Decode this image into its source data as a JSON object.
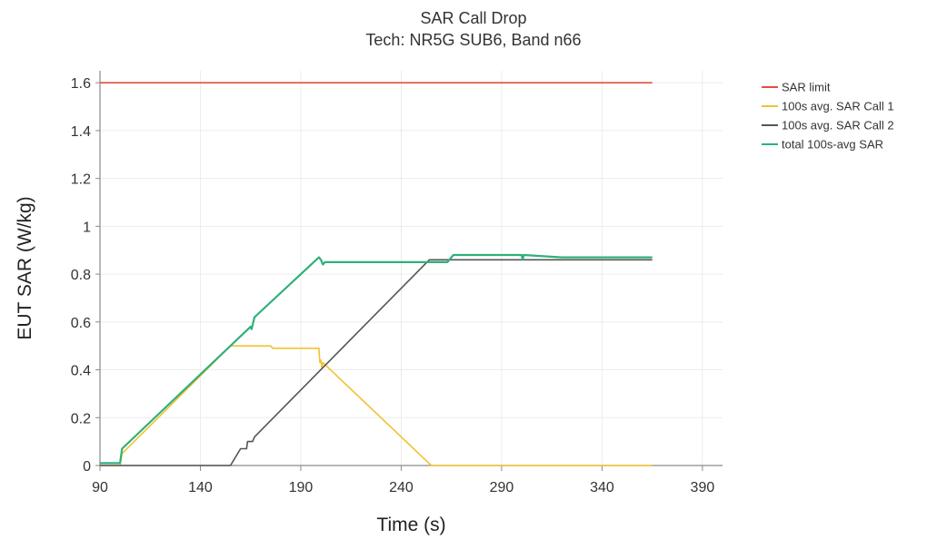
{
  "chart_data": {
    "type": "line",
    "title": "SAR Call Drop",
    "subtitle": "Tech: NR5G SUB6, Band n66",
    "xlabel": "Time (s)",
    "ylabel": "EUT SAR (W/kg)",
    "xlim": [
      90,
      400
    ],
    "ylim": [
      0,
      1.65
    ],
    "xticks": [
      "90",
      "140",
      "190",
      "240",
      "290",
      "340",
      "390"
    ],
    "yticks": [
      "0",
      "0.2",
      "0.4",
      "0.6",
      "0.8",
      "1",
      "1.2",
      "1.4",
      "1.6"
    ],
    "grid": true,
    "legend_position": "right",
    "series": [
      {
        "name": "SAR limit",
        "color": "#e0523b",
        "x": [
          90,
          365
        ],
        "y": [
          1.6,
          1.6
        ]
      },
      {
        "name": "100s avg. SAR Call 1",
        "color": "#f2c230",
        "x": [
          90,
          100,
          101,
          155,
          155.5,
          175,
          176,
          199,
          199.5,
          200,
          200.5,
          201,
          255,
          365
        ],
        "y": [
          0,
          0,
          0.05,
          0.5,
          0.5,
          0.5,
          0.49,
          0.49,
          0.43,
          0.44,
          0.41,
          0.43,
          0,
          0
        ]
      },
      {
        "name": "100s avg. SAR Call 2",
        "color": "#555555",
        "x": [
          90,
          155,
          160,
          163,
          163.5,
          166,
          167,
          254,
          365
        ],
        "y": [
          0,
          0,
          0.07,
          0.07,
          0.1,
          0.1,
          0.12,
          0.86,
          0.86
        ]
      },
      {
        "name": "total 100s-avg SAR",
        "color": "#2fb07a",
        "x": [
          90,
          100,
          101,
          165,
          165.5,
          167,
          199,
          200,
          201,
          202,
          203,
          263,
          265,
          266,
          300,
          300.5,
          301,
          320,
          365
        ],
        "y": [
          0.01,
          0.01,
          0.07,
          0.58,
          0.57,
          0.62,
          0.87,
          0.86,
          0.84,
          0.85,
          0.85,
          0.85,
          0.87,
          0.88,
          0.88,
          0.86,
          0.88,
          0.87,
          0.87
        ]
      }
    ]
  }
}
